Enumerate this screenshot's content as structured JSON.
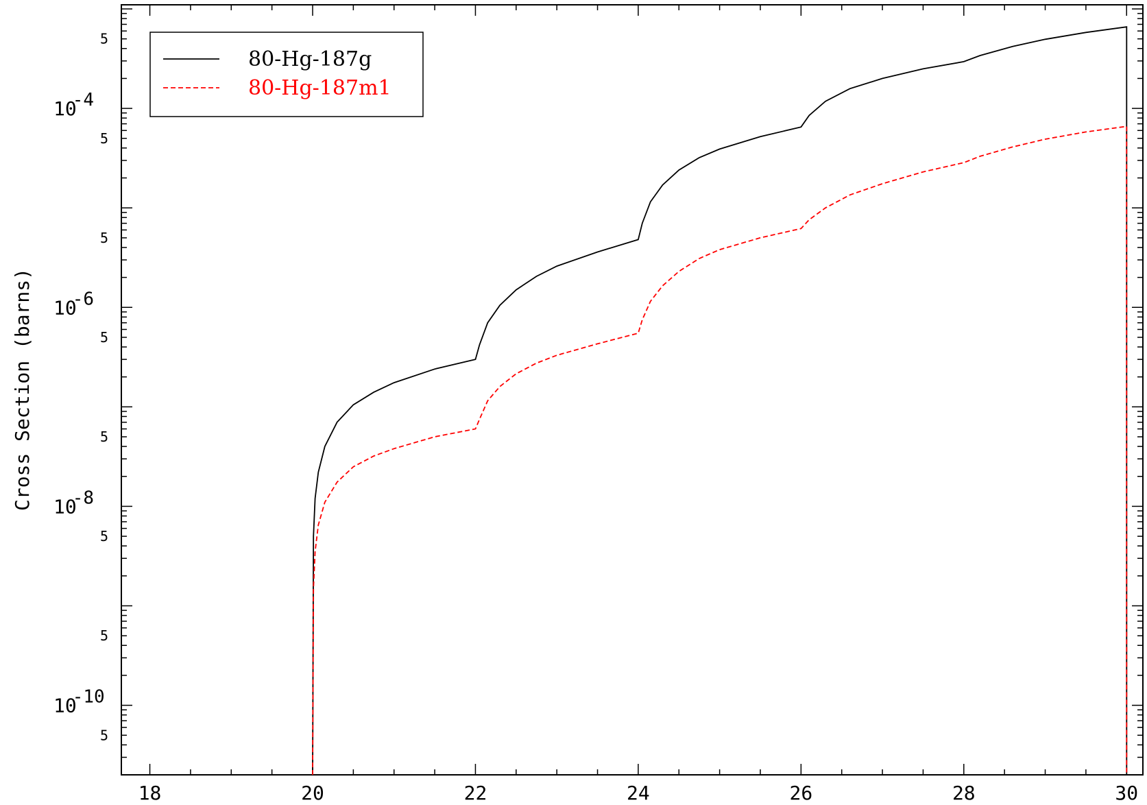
{
  "chart_data": {
    "type": "line",
    "title": "",
    "xlabel": "",
    "ylabel": "Cross Section (barns)",
    "xlim": [
      17.65,
      30.2
    ],
    "ylim": [
      2e-11,
      0.0011
    ],
    "yscale": "log",
    "x_ticks": [
      "18",
      "20",
      "22",
      "24",
      "26",
      "28",
      "30"
    ],
    "y_decade_labels": [
      {
        "value": 0.0001,
        "base": "10",
        "exp": "-4"
      },
      {
        "value": 1e-06,
        "base": "10",
        "exp": "-6"
      },
      {
        "value": 1e-08,
        "base": "10",
        "exp": "-8"
      },
      {
        "value": 1e-10,
        "base": "10",
        "exp": "-10"
      }
    ],
    "y_five_label": "5",
    "legend_position": "top-left",
    "grid": false,
    "series": [
      {
        "name": "80-Hg-187g",
        "color": "#000000",
        "dash": "solid",
        "points": [
          [
            20.0,
            2e-11
          ],
          [
            20.01,
            5e-09
          ],
          [
            20.03,
            1.2e-08
          ],
          [
            20.07,
            2.2e-08
          ],
          [
            20.15,
            4e-08
          ],
          [
            20.3,
            7e-08
          ],
          [
            20.5,
            1.05e-07
          ],
          [
            20.75,
            1.4e-07
          ],
          [
            21.0,
            1.75e-07
          ],
          [
            21.5,
            2.4e-07
          ],
          [
            22.0,
            3e-07
          ],
          [
            22.05,
            4.2e-07
          ],
          [
            22.15,
            7e-07
          ],
          [
            22.3,
            1.05e-06
          ],
          [
            22.5,
            1.5e-06
          ],
          [
            22.75,
            2.05e-06
          ],
          [
            23.0,
            2.6e-06
          ],
          [
            23.5,
            3.6e-06
          ],
          [
            24.0,
            4.8e-06
          ],
          [
            24.05,
            7e-06
          ],
          [
            24.15,
            1.15e-05
          ],
          [
            24.3,
            1.7e-05
          ],
          [
            24.5,
            2.4e-05
          ],
          [
            24.75,
            3.2e-05
          ],
          [
            25.0,
            3.9e-05
          ],
          [
            25.5,
            5.2e-05
          ],
          [
            26.0,
            6.5e-05
          ],
          [
            26.1,
            8.5e-05
          ],
          [
            26.3,
            0.000118
          ],
          [
            26.6,
            0.000158
          ],
          [
            27.0,
            0.0002
          ],
          [
            27.5,
            0.00025
          ],
          [
            28.0,
            0.000295
          ],
          [
            28.2,
            0.00034
          ],
          [
            28.6,
            0.00042
          ],
          [
            29.0,
            0.000495
          ],
          [
            29.5,
            0.00058
          ],
          [
            30.0,
            0.00066
          ],
          [
            30.0,
            2e-11
          ]
        ]
      },
      {
        "name": "80-Hg-187m1",
        "color": "#ff0000",
        "dash": "dashed",
        "points": [
          [
            20.0,
            2e-11
          ],
          [
            20.01,
            1.5e-09
          ],
          [
            20.03,
            3.5e-09
          ],
          [
            20.07,
            6.5e-09
          ],
          [
            20.15,
            1.1e-08
          ],
          [
            20.3,
            1.75e-08
          ],
          [
            20.5,
            2.5e-08
          ],
          [
            20.75,
            3.2e-08
          ],
          [
            21.0,
            3.8e-08
          ],
          [
            21.5,
            5e-08
          ],
          [
            22.0,
            6e-08
          ],
          [
            22.05,
            7.5e-08
          ],
          [
            22.15,
            1.15e-07
          ],
          [
            22.3,
            1.6e-07
          ],
          [
            22.5,
            2.15e-07
          ],
          [
            22.75,
            2.75e-07
          ],
          [
            23.0,
            3.3e-07
          ],
          [
            23.5,
            4.3e-07
          ],
          [
            24.0,
            5.5e-07
          ],
          [
            24.05,
            7.5e-07
          ],
          [
            24.15,
            1.15e-06
          ],
          [
            24.3,
            1.65e-06
          ],
          [
            24.5,
            2.3e-06
          ],
          [
            24.75,
            3.1e-06
          ],
          [
            25.0,
            3.8e-06
          ],
          [
            25.5,
            5e-06
          ],
          [
            26.0,
            6.2e-06
          ],
          [
            26.1,
            7.6e-06
          ],
          [
            26.3,
            1e-05
          ],
          [
            26.6,
            1.35e-05
          ],
          [
            27.0,
            1.75e-05
          ],
          [
            27.5,
            2.3e-05
          ],
          [
            28.0,
            2.85e-05
          ],
          [
            28.2,
            3.3e-05
          ],
          [
            28.6,
            4.1e-05
          ],
          [
            29.0,
            4.9e-05
          ],
          [
            29.5,
            5.8e-05
          ],
          [
            30.0,
            6.6e-05
          ],
          [
            30.0,
            2e-11
          ]
        ]
      }
    ]
  }
}
